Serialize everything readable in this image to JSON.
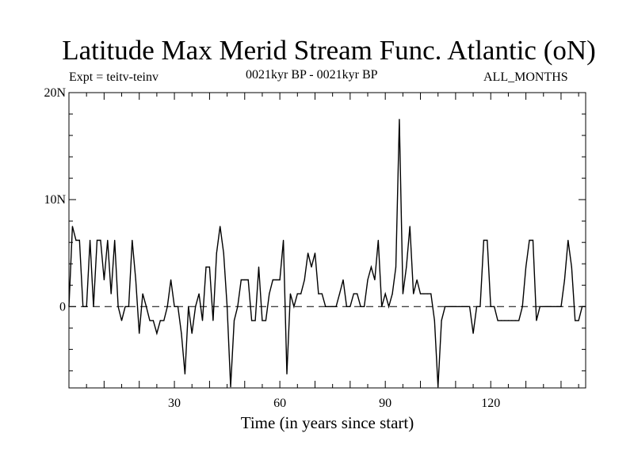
{
  "chart_data": {
    "type": "line",
    "title": "Latitude Max Merid Stream Func. Atlantic (oN)",
    "left_subtitle": "Expt = teitv-teinv",
    "center_subtitle": "0021kyr BP - 0021kyr BP",
    "right_subtitle": "ALL_MONTHS",
    "xlabel": "Time (in years since start)",
    "ylabel": "",
    "xlim": [
      0,
      147
    ],
    "ylim": [
      -7.6,
      20
    ],
    "x_ticks": [
      30,
      60,
      90,
      120
    ],
    "y_ticks": [
      {
        "value": 20,
        "label": "20N"
      },
      {
        "value": 10,
        "label": "10N"
      },
      {
        "value": 0,
        "label": "0"
      }
    ],
    "zero_line": "dashed",
    "grid": false,
    "series": [
      {
        "x": [
          0,
          1,
          2,
          3,
          4,
          5,
          6,
          7,
          8,
          9,
          10,
          11,
          12,
          13,
          14,
          15,
          16,
          17,
          18,
          19,
          20,
          21,
          22,
          23,
          24,
          25,
          26,
          27,
          28,
          29,
          30,
          31,
          32,
          33,
          34,
          35,
          36,
          37,
          38,
          39,
          40,
          41,
          42,
          43,
          44,
          45,
          46,
          47,
          48,
          49,
          50,
          51,
          52,
          53,
          54,
          55,
          56,
          57,
          58,
          59,
          60,
          61,
          62,
          63,
          64,
          65,
          66,
          67,
          68,
          69,
          70,
          71,
          72,
          73,
          74,
          75,
          76,
          77,
          78,
          79,
          80,
          81,
          82,
          83,
          84,
          85,
          86,
          87,
          88,
          89,
          90,
          91,
          92,
          93,
          94,
          95,
          96,
          97,
          98,
          99,
          100,
          101,
          102,
          103,
          104,
          105,
          106,
          107,
          108,
          109,
          110,
          111,
          112,
          113,
          114,
          115,
          116,
          117,
          118,
          119,
          120,
          121,
          122,
          123,
          124,
          125,
          126,
          127,
          128,
          129,
          130,
          131,
          132,
          133,
          134,
          135,
          136,
          137,
          138,
          139,
          140,
          141,
          142,
          143,
          144,
          145,
          146,
          147
        ],
        "values": [
          0,
          7.5,
          6.2,
          6.2,
          0,
          0,
          6.2,
          0,
          6.2,
          6.2,
          2.5,
          6.2,
          1.2,
          6.2,
          0,
          -1.3,
          0,
          0,
          6.2,
          2.5,
          -2.5,
          1.2,
          0,
          -1.3,
          -1.3,
          -2.5,
          -1.3,
          -1.3,
          0,
          2.5,
          0,
          0,
          -2.5,
          -6.3,
          0,
          -2.5,
          0,
          1.2,
          -1.3,
          3.7,
          3.7,
          -1.3,
          5,
          7.5,
          5,
          0,
          -7.5,
          -1.3,
          0,
          2.5,
          2.5,
          2.5,
          -1.3,
          -1.3,
          3.7,
          -1.3,
          -1.3,
          1.2,
          2.5,
          2.5,
          2.5,
          6.2,
          -6.3,
          1.2,
          0,
          1.2,
          1.2,
          2.5,
          5,
          3.7,
          5,
          1.2,
          1.2,
          0,
          0,
          0,
          0,
          1.2,
          2.5,
          0,
          0,
          1.2,
          1.2,
          0,
          0,
          2.5,
          3.7,
          2.5,
          6.2,
          0,
          1.2,
          0,
          1.2,
          3.7,
          17.5,
          1.2,
          3.7,
          7.5,
          1.2,
          2.5,
          1.2,
          1.2,
          1.2,
          1.2,
          -1.3,
          -7.5,
          -1.3,
          0,
          0,
          0,
          0,
          0,
          0,
          0,
          0,
          -2.5,
          0,
          0,
          6.2,
          6.2,
          0,
          0,
          -1.3,
          -1.3,
          -1.3,
          -1.3,
          -1.3,
          -1.3,
          -1.3,
          0,
          3.7,
          6.2,
          6.2,
          -1.3,
          0,
          0,
          0,
          0,
          0,
          0,
          0,
          2.5,
          6.2,
          3.7,
          -1.3,
          -1.3,
          0,
          0
        ]
      }
    ]
  }
}
